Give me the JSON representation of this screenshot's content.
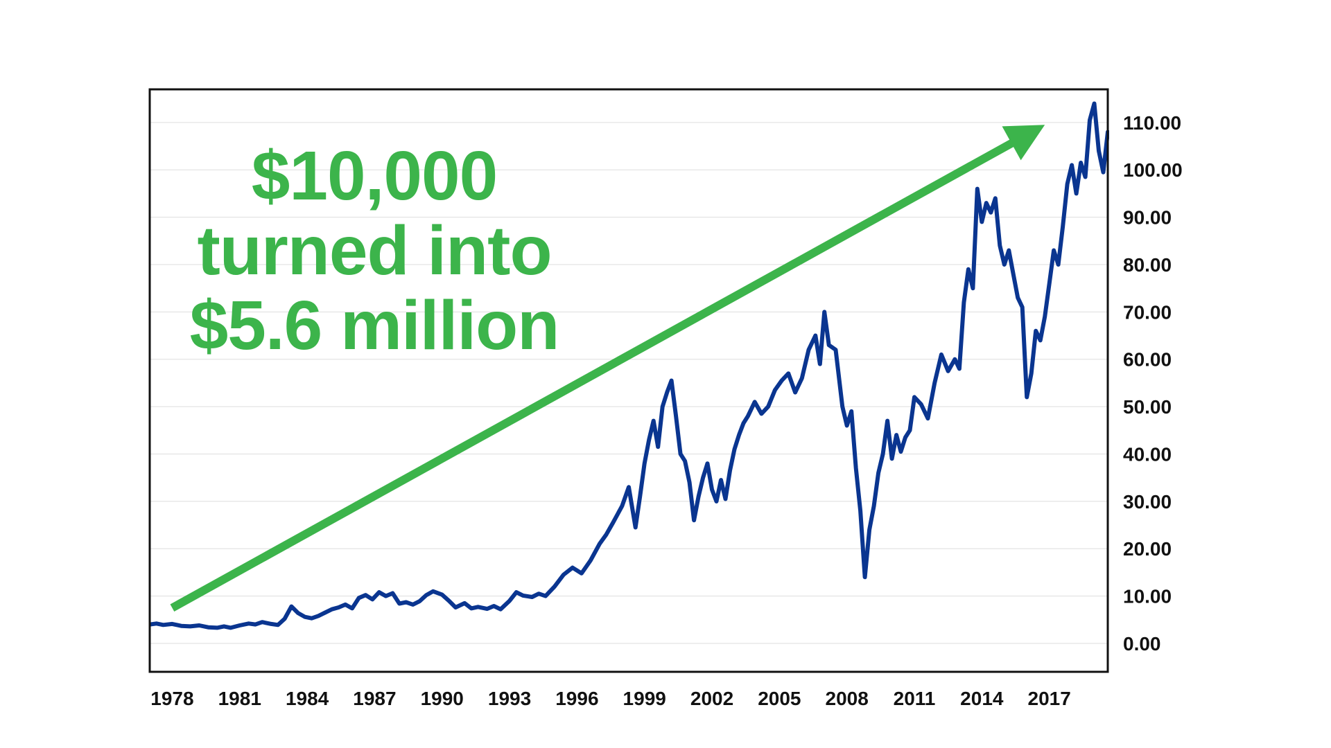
{
  "chart_data": {
    "type": "line",
    "title": "",
    "xlabel": "",
    "ylabel": "",
    "headline": [
      "$10,000",
      "turned into",
      "$5.6 million"
    ],
    "x_range": [
      1977.0,
      2019.6
    ],
    "ylim": [
      -6,
      117
    ],
    "x_ticks": [
      1978,
      1981,
      1984,
      1987,
      1990,
      1993,
      1996,
      1999,
      2002,
      2005,
      2008,
      2011,
      2014,
      2017
    ],
    "y_ticks": [
      {
        "value": 0,
        "label": "0.00"
      },
      {
        "value": 10,
        "label": "10.00"
      },
      {
        "value": 20,
        "label": "20.00"
      },
      {
        "value": 30,
        "label": "30.00"
      },
      {
        "value": 40,
        "label": "40.00"
      },
      {
        "value": 50,
        "label": "50.00"
      },
      {
        "value": 60,
        "label": "60.00"
      },
      {
        "value": 70,
        "label": "70.00"
      },
      {
        "value": 80,
        "label": "80.00"
      },
      {
        "value": 90,
        "label": "90.00"
      },
      {
        "value": 100,
        "label": "100.00"
      },
      {
        "value": 110,
        "label": "110.00"
      }
    ],
    "grid": true,
    "trend_arrow": {
      "from": [
        1978.0,
        7.5
      ],
      "to": [
        2016.8,
        109.5
      ]
    },
    "colors": {
      "line": "#0a3590",
      "arrow": "#3cb44b",
      "headline": "#3cb44b",
      "grid": "#dddddd",
      "frame": "#111111"
    },
    "series": [
      {
        "x": [
          1977.0,
          1977.3,
          1977.6,
          1978.0,
          1978.4,
          1978.8,
          1979.2,
          1979.6,
          1980.0,
          1980.3,
          1980.6,
          1981.0,
          1981.4,
          1981.7,
          1982.0,
          1982.4,
          1982.7,
          1983.0,
          1983.3,
          1983.6,
          1983.9,
          1984.2,
          1984.5,
          1984.8,
          1985.1,
          1985.4,
          1985.7,
          1986.0,
          1986.3,
          1986.6,
          1986.9,
          1987.2,
          1987.5,
          1987.8,
          1988.1,
          1988.4,
          1988.7,
          1989.0,
          1989.3,
          1989.6,
          1990.0,
          1990.3,
          1990.6,
          1991.0,
          1991.3,
          1991.6,
          1992.0,
          1992.3,
          1992.6,
          1993.0,
          1993.3,
          1993.6,
          1994.0,
          1994.3,
          1994.6,
          1995.0,
          1995.4,
          1995.8,
          1996.2,
          1996.6,
          1997.0,
          1997.3,
          1997.6,
          1998.0,
          1998.3,
          1998.6,
          1998.8,
          1999.0,
          1999.2,
          1999.4,
          1999.6,
          1999.8,
          2000.0,
          2000.2,
          2000.4,
          2000.6,
          2000.8,
          2001.0,
          2001.2,
          2001.4,
          2001.6,
          2001.8,
          2002.0,
          2002.2,
          2002.4,
          2002.6,
          2002.8,
          2003.0,
          2003.2,
          2003.4,
          2003.6,
          2003.9,
          2004.2,
          2004.5,
          2004.8,
          2005.1,
          2005.4,
          2005.7,
          2006.0,
          2006.3,
          2006.6,
          2006.8,
          2007.0,
          2007.2,
          2007.5,
          2007.8,
          2008.0,
          2008.2,
          2008.4,
          2008.6,
          2008.8,
          2009.0,
          2009.2,
          2009.4,
          2009.6,
          2009.8,
          2010.0,
          2010.2,
          2010.4,
          2010.6,
          2010.8,
          2011.0,
          2011.3,
          2011.6,
          2011.9,
          2012.2,
          2012.5,
          2012.8,
          2013.0,
          2013.2,
          2013.4,
          2013.6,
          2013.8,
          2014.0,
          2014.2,
          2014.4,
          2014.6,
          2014.8,
          2015.0,
          2015.2,
          2015.4,
          2015.6,
          2015.8,
          2016.0,
          2016.2,
          2016.4,
          2016.6,
          2016.8,
          2017.0,
          2017.2,
          2017.4,
          2017.6,
          2017.8,
          2018.0,
          2018.2,
          2018.4,
          2018.6,
          2018.8,
          2019.0,
          2019.2,
          2019.4,
          2019.6
        ],
        "values": [
          4.0,
          4.2,
          3.9,
          4.1,
          3.7,
          3.6,
          3.8,
          3.4,
          3.3,
          3.6,
          3.3,
          3.8,
          4.2,
          4.0,
          4.5,
          4.1,
          3.9,
          5.2,
          7.8,
          6.4,
          5.6,
          5.3,
          5.8,
          6.5,
          7.2,
          7.6,
          8.2,
          7.4,
          9.6,
          10.2,
          9.3,
          10.8,
          10.0,
          10.6,
          8.4,
          8.7,
          8.2,
          8.9,
          10.2,
          11.0,
          10.3,
          9.0,
          7.6,
          8.5,
          7.4,
          7.7,
          7.3,
          7.9,
          7.2,
          9.0,
          10.8,
          10.1,
          9.8,
          10.5,
          10.0,
          12.0,
          14.5,
          16.0,
          14.8,
          17.5,
          21.0,
          23.0,
          25.5,
          29.0,
          33.0,
          24.5,
          31.0,
          38.0,
          43.0,
          47.0,
          41.5,
          50.0,
          53.0,
          55.5,
          48.0,
          40.0,
          38.5,
          34.0,
          26.0,
          31.0,
          35.0,
          38.0,
          32.5,
          30.0,
          34.5,
          30.5,
          36.5,
          41.0,
          44.0,
          46.5,
          48.0,
          51.0,
          48.5,
          50.0,
          53.5,
          55.5,
          57.0,
          53.0,
          56.0,
          62.0,
          65.0,
          59.0,
          70.0,
          63.0,
          62.0,
          50.0,
          46.0,
          49.0,
          37.0,
          28.0,
          14.0,
          24.0,
          29.0,
          36.0,
          40.0,
          47.0,
          39.0,
          44.0,
          40.5,
          43.5,
          45.0,
          52.0,
          50.5,
          47.5,
          55.0,
          61.0,
          57.5,
          60.0,
          58.0,
          72.0,
          79.0,
          75.0,
          96.0,
          89.0,
          93.0,
          91.0,
          94.0,
          84.0,
          80.0,
          83.0,
          78.0,
          73.0,
          71.0,
          52.0,
          57.0,
          66.0,
          64.0,
          69.0,
          76.0,
          83.0,
          80.0,
          88.0,
          97.0,
          101.0,
          95.0,
          101.5,
          98.5,
          110.5,
          114.0,
          104.0,
          99.5,
          108.0
        ]
      }
    ]
  }
}
